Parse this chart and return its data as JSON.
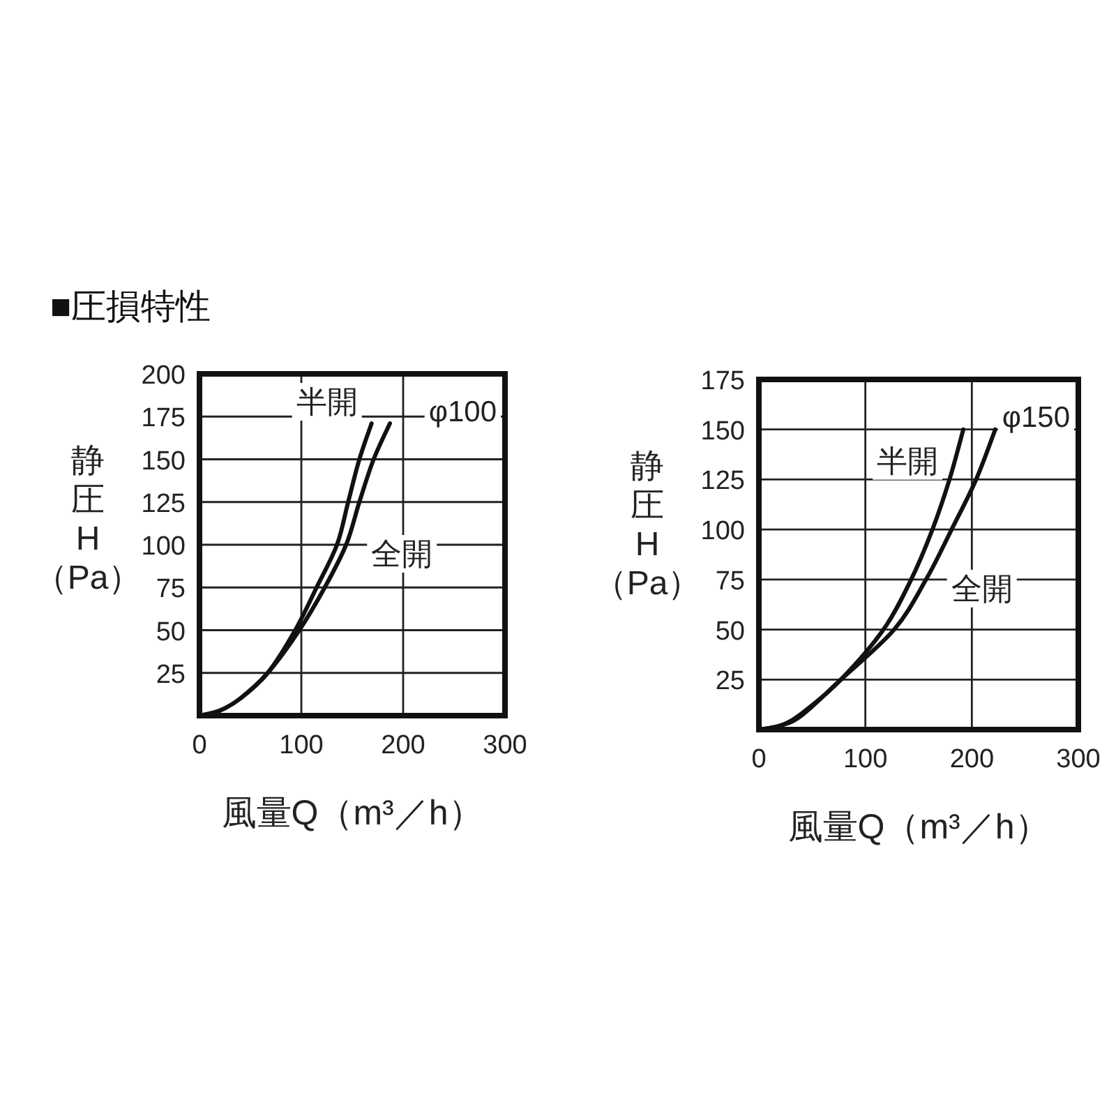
{
  "chart_data": [
    {
      "type": "line",
      "title": "■圧損特性",
      "xlabel": "風量Q（m³／h）",
      "ylabel": "静圧 H （Pa）",
      "annotations": [
        "φ100"
      ],
      "xlim": [
        0,
        300
      ],
      "ylim": [
        0,
        200
      ],
      "xticks": [
        0,
        100,
        200,
        300
      ],
      "yticks": [
        25,
        50,
        75,
        100,
        125,
        150,
        175,
        200
      ],
      "grid": true,
      "legend": false,
      "marker": "none",
      "line_style": "solid",
      "series": [
        {
          "name": "半開",
          "color": "#111111",
          "x": [
            0,
            20,
            40,
            67,
            94,
            115,
            135,
            146,
            157,
            169
          ],
          "values": [
            0,
            3,
            10,
            25,
            50,
            75,
            100,
            125,
            150,
            171
          ]
        },
        {
          "name": "全開",
          "color": "#111111",
          "x": [
            0,
            20,
            40,
            67,
            98,
            123,
            144,
            157,
            171,
            187
          ],
          "values": [
            0,
            3,
            10,
            25,
            50,
            75,
            100,
            125,
            150,
            171
          ]
        }
      ]
    },
    {
      "type": "line",
      "xlabel": "風量Q（m³／h）",
      "ylabel": "静圧 H （Pa）",
      "annotations": [
        "φ150"
      ],
      "xlim": [
        0,
        300
      ],
      "ylim": [
        0,
        175
      ],
      "xticks": [
        0,
        100,
        200,
        300
      ],
      "yticks": [
        25,
        50,
        75,
        100,
        125,
        150,
        175
      ],
      "grid": true,
      "legend": false,
      "marker": "none",
      "line_style": "solid",
      "series": [
        {
          "name": "半開",
          "color": "#111111",
          "x": [
            0,
            20,
            40,
            77,
            117,
            143,
            163,
            179,
            192
          ],
          "values": [
            0,
            2,
            8,
            25,
            50,
            75,
            100,
            125,
            150
          ]
        },
        {
          "name": "全開",
          "color": "#111111",
          "x": [
            0,
            20,
            40,
            77,
            127,
            157,
            181,
            204,
            222
          ],
          "values": [
            0,
            2,
            7,
            25,
            50,
            75,
            100,
            125,
            150
          ]
        }
      ]
    }
  ]
}
